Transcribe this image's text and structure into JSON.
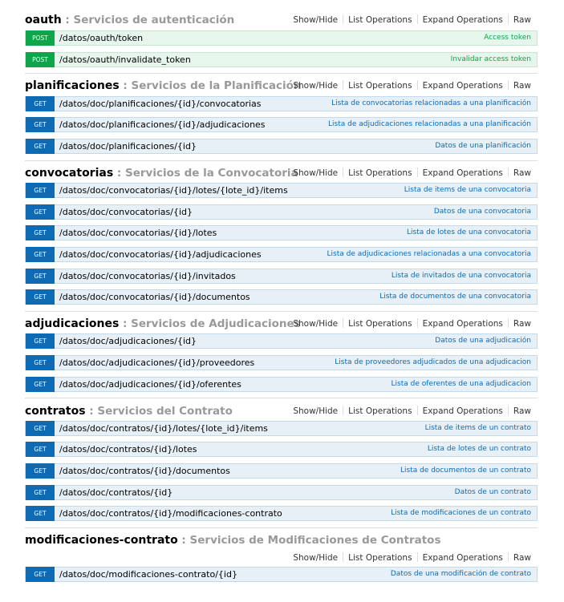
{
  "sections": [
    {
      "id": "oauth",
      "name": "oauth",
      "description": "Servicios de autenticación",
      "ops": [
        "Show/Hide",
        "List Operations",
        "Expand Operations",
        "Raw"
      ],
      "endpoints": [
        {
          "method": "POST",
          "path": "/datos/oauth/token",
          "summary": "Access token"
        },
        {
          "method": "POST",
          "path": "/datos/oauth/invalidate_token",
          "summary": "Invalidar access token"
        }
      ]
    },
    {
      "id": "planificaciones",
      "name": "planificaciones",
      "description": "Servicios de la Planificación",
      "ops": [
        "Show/Hide",
        "List Operations",
        "Expand Operations",
        "Raw"
      ],
      "endpoints": [
        {
          "method": "GET",
          "path": "/datos/doc/planificaciones/{id}/convocatorias",
          "summary": "Lista de convocatorias relacionadas a una planificación"
        },
        {
          "method": "GET",
          "path": "/datos/doc/planificaciones/{id}/adjudicaciones",
          "summary": "Lista de adjudicaciones relacionadas a una planificación"
        },
        {
          "method": "GET",
          "path": "/datos/doc/planificaciones/{id}",
          "summary": "Datos de una planificación"
        }
      ]
    },
    {
      "id": "convocatorias",
      "name": "convocatorias",
      "description": "Servicios de la Convocatoria",
      "ops": [
        "Show/Hide",
        "List Operations",
        "Expand Operations",
        "Raw"
      ],
      "endpoints": [
        {
          "method": "GET",
          "path": "/datos/doc/convocatorias/{id}/lotes/{lote_id}/items",
          "summary": "Lista de items de una convocatoria"
        },
        {
          "method": "GET",
          "path": "/datos/doc/convocatorias/{id}",
          "summary": "Datos de una convocatoria"
        },
        {
          "method": "GET",
          "path": "/datos/doc/convocatorias/{id}/lotes",
          "summary": "Lista de lotes de una convocatoria"
        },
        {
          "method": "GET",
          "path": "/datos/doc/convocatorias/{id}/adjudicaciones",
          "summary": "Lista de adjudicaciones relacionadas a una convocatoria"
        },
        {
          "method": "GET",
          "path": "/datos/doc/convocatorias/{id}/invitados",
          "summary": "Lista de invitados de una convocatoria"
        },
        {
          "method": "GET",
          "path": "/datos/doc/convocatorias/{id}/documentos",
          "summary": "Lista de documentos de una convocatoria"
        }
      ]
    },
    {
      "id": "adjudicaciones",
      "name": "adjudicaciones",
      "description": "Servicios de Adjudicaciones",
      "ops": [
        "Show/Hide",
        "List Operations",
        "Expand Operations",
        "Raw"
      ],
      "endpoints": [
        {
          "method": "GET",
          "path": "/datos/doc/adjudicaciones/{id}",
          "summary": "Datos de una adjudicación"
        },
        {
          "method": "GET",
          "path": "/datos/doc/adjudicaciones/{id}/proveedores",
          "summary": "Lista de proveedores adjudicados de una adjudicacion"
        },
        {
          "method": "GET",
          "path": "/datos/doc/adjudicaciones/{id}/oferentes",
          "summary": "Lista de oferentes de una adjudicacion"
        }
      ]
    },
    {
      "id": "contratos",
      "name": "contratos",
      "description": "Servicios del Contrato",
      "ops": [
        "Show/Hide",
        "List Operations",
        "Expand Operations",
        "Raw"
      ],
      "endpoints": [
        {
          "method": "GET",
          "path": "/datos/doc/contratos/{id}/lotes/{lote_id}/items",
          "summary": "Lista de items de un contrato"
        },
        {
          "method": "GET",
          "path": "/datos/doc/contratos/{id}/lotes",
          "summary": "Lista de lotes de un contrato"
        },
        {
          "method": "GET",
          "path": "/datos/doc/contratos/{id}/documentos",
          "summary": "Lista de documentos de un contrato"
        },
        {
          "method": "GET",
          "path": "/datos/doc/contratos/{id}",
          "summary": "Datos de un contrato"
        },
        {
          "method": "GET",
          "path": "/datos/doc/contratos/{id}/modificaciones-contrato",
          "summary": "Lista de modificaciones de un contrato"
        }
      ]
    },
    {
      "id": "modificaciones-contrato",
      "name": "modificaciones-contrato",
      "description": "Servicios de Modificaciones de Contratos",
      "ops": [
        "Show/Hide",
        "List Operations",
        "Expand Operations",
        "Raw"
      ],
      "endpoints": [
        {
          "method": "GET",
          "path": "/datos/doc/modificaciones-contrato/{id}",
          "summary": "Datos de una modificación de contrato"
        }
      ]
    }
  ]
}
